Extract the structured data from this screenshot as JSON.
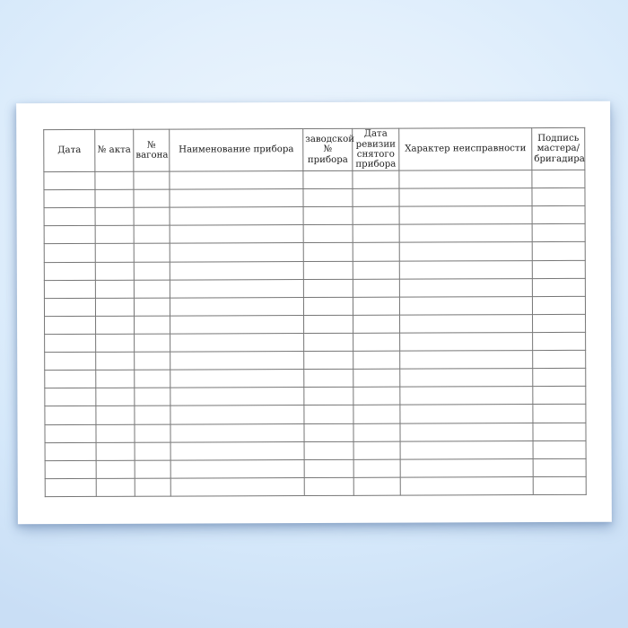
{
  "page": {
    "background_center_color": "#eef6fe",
    "background_edge_color": "#c9def5",
    "paper_color": "#ffffff",
    "grid_line_color": "#767676",
    "outer_border_color": "#4c4c4c",
    "header_text_color": "#1d1d1d"
  },
  "table": {
    "columns": [
      {
        "id": "date",
        "label": "Дата"
      },
      {
        "id": "act-number",
        "label": "№ акта"
      },
      {
        "id": "wagon-number",
        "label": "№\nвагона"
      },
      {
        "id": "device-name",
        "label": "Наименование прибора"
      },
      {
        "id": "factory-number",
        "label": "заводской\n№ прибора"
      },
      {
        "id": "revision-date",
        "label": "Дата\nревизии\nснятого\nприбора"
      },
      {
        "id": "fault-nature",
        "label": "Характер неисправности"
      },
      {
        "id": "signature",
        "label": "Подпись\nмастера/\nбригадира"
      }
    ],
    "row_count": 18,
    "cells_content": ""
  }
}
